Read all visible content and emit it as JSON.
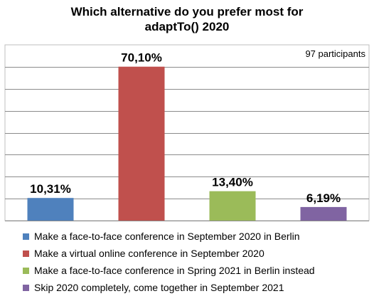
{
  "chart_data": {
    "type": "bar",
    "title": [
      "Which alternative do you prefer most for",
      "adaptTo() 2020"
    ],
    "annotation": "97 participants",
    "categories": [
      "Make a face-to-face conference in September 2020 in Berlin",
      "Make a virtual online conference in September 2020",
      "Make a face-to-face conference in Spring 2021 in Berlin instead",
      "Skip 2020 completely, come together in September 2021"
    ],
    "values": [
      10.31,
      70.1,
      13.4,
      6.19
    ],
    "data_labels": [
      "10,31%",
      "70,10%",
      "13,40%",
      "6,19%"
    ],
    "colors": [
      "#4F81BD",
      "#C0504D",
      "#9BBB59",
      "#8064A2"
    ],
    "ylim": [
      0,
      70
    ],
    "y_gridlines": [
      0,
      10,
      20,
      30,
      40,
      50,
      60,
      70
    ],
    "grid": true,
    "legend": "bottom"
  }
}
